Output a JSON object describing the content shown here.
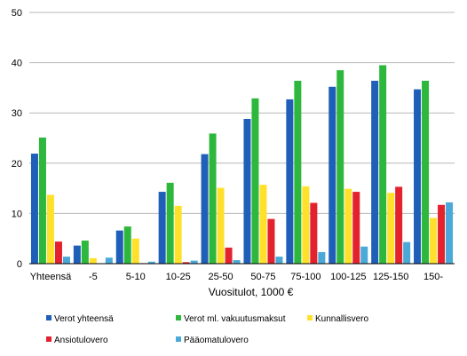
{
  "chart_data": {
    "type": "bar",
    "xlabel": "Vuositulot, 1000 €",
    "ylabel": "",
    "ylim": [
      0,
      50
    ],
    "yticks": [
      0,
      10,
      20,
      30,
      40,
      50
    ],
    "grid": "horizontal",
    "legend_position": "bottom",
    "categories": [
      "Yhteensä",
      "-5",
      "5-10",
      "10-25",
      "25-50",
      "50-75",
      "75-100",
      "100-125",
      "125-150",
      "150-"
    ],
    "series": [
      {
        "name": "Verot yhteensä",
        "color": "#1f5fb8",
        "values": [
          21.9,
          3.6,
          6.6,
          14.3,
          21.8,
          28.8,
          32.7,
          35.2,
          36.4,
          34.7
        ]
      },
      {
        "name": "Verot ml. vakuutusmaksut",
        "color": "#2db83d",
        "values": [
          25.1,
          4.6,
          7.4,
          16.1,
          25.9,
          32.9,
          36.4,
          38.5,
          39.5,
          36.4
        ]
      },
      {
        "name": "Kunnallisvero",
        "color": "#ffe12b",
        "values": [
          13.7,
          1.1,
          5.0,
          11.5,
          15.1,
          15.7,
          15.4,
          14.9,
          14.1,
          9.1
        ]
      },
      {
        "name": "Ansiotulovero",
        "color": "#e3222e",
        "values": [
          4.4,
          0.0,
          0.1,
          0.3,
          3.2,
          8.9,
          12.1,
          14.3,
          15.3,
          11.7
        ]
      },
      {
        "name": "Pääomatulovero",
        "color": "#4aa9d8",
        "values": [
          1.4,
          1.2,
          0.4,
          0.6,
          0.7,
          1.4,
          2.3,
          3.4,
          4.3,
          12.2
        ]
      }
    ]
  }
}
